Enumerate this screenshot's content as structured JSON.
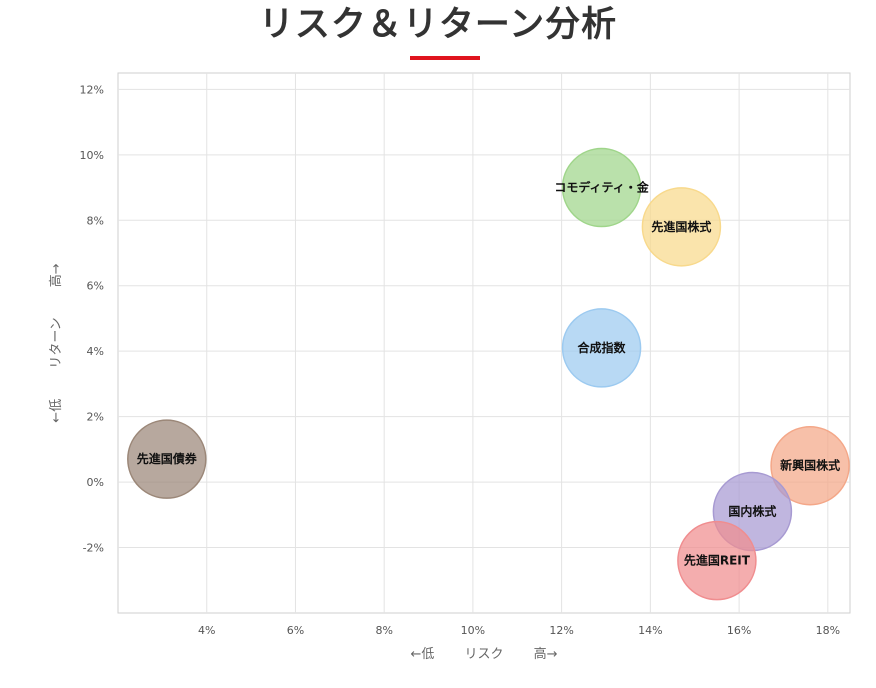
{
  "page": {
    "title": "リスク＆リターン分析",
    "accent_color": "#e0141e"
  },
  "chart_data": {
    "type": "scatter",
    "variant": "bubble",
    "title": "",
    "xlabel": "←低　　 リスク　　 高→",
    "ylabel": "←低　　 リターン　　 高→",
    "xlim": [
      2.0,
      18.5
    ],
    "ylim": [
      -4.0,
      12.5
    ],
    "x_ticks": [
      4,
      6,
      8,
      10,
      12,
      14,
      16,
      18
    ],
    "y_ticks": [
      -2,
      0,
      2,
      4,
      6,
      8,
      10,
      12
    ],
    "tick_suffix": "%",
    "grid": true,
    "legend": "none",
    "points": [
      {
        "name": "コモディティ・金",
        "x": 12.9,
        "y": 9.0,
        "color": "#9fd58a"
      },
      {
        "name": "先進国株式",
        "x": 14.7,
        "y": 7.8,
        "color": "#f8d98c"
      },
      {
        "name": "合成指数",
        "x": 12.9,
        "y": 4.1,
        "color": "#9ccaf0"
      },
      {
        "name": "先進国債券",
        "x": 3.1,
        "y": 0.7,
        "color": "#9b8778"
      },
      {
        "name": "新興国株式",
        "x": 17.6,
        "y": 0.5,
        "color": "#f4a788"
      },
      {
        "name": "国内株式",
        "x": 16.3,
        "y": -0.9,
        "color": "#a79ad2"
      },
      {
        "name": "先進国REIT",
        "x": 15.5,
        "y": -2.4,
        "color": "#f08d8f"
      }
    ]
  }
}
